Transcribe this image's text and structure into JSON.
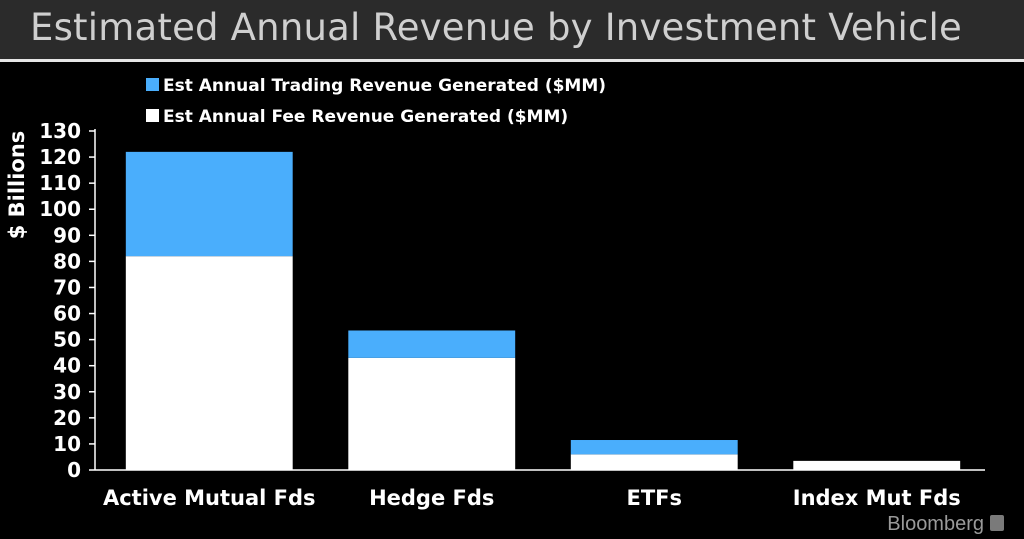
{
  "header": {
    "title": "Estimated Annual Revenue by Investment Vehicle"
  },
  "brand": {
    "name": "Bloomberg",
    "icon": "bloomberg-terminal-icon"
  },
  "colors": {
    "trading": "#4aaefc",
    "fee": "#ffffff",
    "background": "#000000",
    "axis": "#ffffff"
  },
  "chart_data": {
    "type": "bar",
    "stacked": true,
    "categories": [
      "Active Mutual Fds",
      "Hedge Fds",
      "ETFs",
      "Index Mut Fds"
    ],
    "series": [
      {
        "name": "Est Annual Fee Revenue Generated ($MM)",
        "values": [
          82,
          43,
          6,
          3.5
        ]
      },
      {
        "name": "Est Annual Trading Revenue Generated ($MM)",
        "values": [
          40,
          10.5,
          5.5,
          0
        ]
      }
    ],
    "title": "Estimated Annual Revenue by Investment Vehicle",
    "xlabel": "",
    "ylabel": "$ Billions",
    "ylim": [
      0,
      130
    ],
    "yticks": [
      0,
      10,
      20,
      30,
      40,
      50,
      60,
      70,
      80,
      90,
      100,
      110,
      120,
      130
    ],
    "grid": false,
    "legend_position": "top-left"
  }
}
